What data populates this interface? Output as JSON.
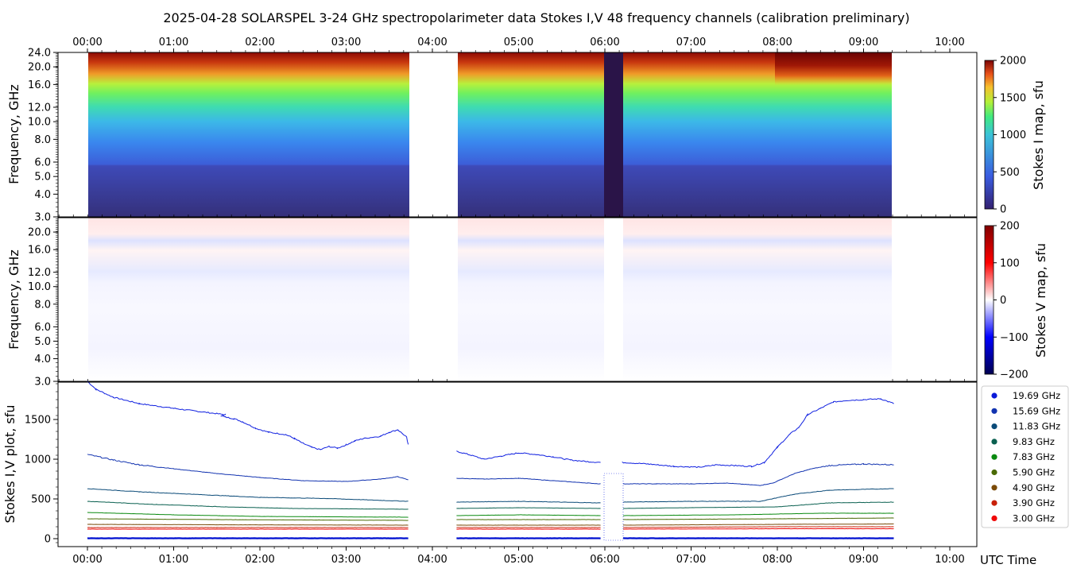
{
  "title": "2025-04-28  SOLARSPEL  3-24 GHz spectropolarimeter data   Stokes I,V   48 frequency channels   (calibration preliminary)",
  "chart_data": [
    {
      "type": "heatmap",
      "name": "stokes-i-map",
      "ylabel": "Frequency, GHz",
      "colorbar_label": "Stokes I map, sfu",
      "colorbar_ticks": [
        "0",
        "500",
        "1000",
        "1500",
        "2000"
      ],
      "clim": [
        0,
        2000
      ],
      "yticks": [
        "3.0",
        "4.0",
        "5.0",
        "6.0",
        "8.0",
        "10.0",
        "12.0",
        "16.0",
        "20.0",
        "24.0"
      ],
      "ylim_ghz": [
        3.0,
        24.0
      ],
      "data_ranges_hours": [
        [
          0.0,
          3.72
        ],
        [
          4.28,
          9.35
        ]
      ],
      "dropout_hours": [
        6.0,
        6.2
      ]
    },
    {
      "type": "heatmap",
      "name": "stokes-v-map",
      "ylabel": "Frequency, GHz",
      "colorbar_label": "Stokes V map, sfu",
      "colorbar_ticks": [
        "200",
        "100",
        "0",
        "−100",
        "−200"
      ],
      "clim": [
        -200,
        200
      ],
      "yticks": [
        "3.0",
        "4.0",
        "5.0",
        "6.0",
        "8.0",
        "10.0",
        "12.0",
        "16.0",
        "20.0"
      ],
      "ylim_ghz": [
        3.0,
        24.0
      ]
    },
    {
      "type": "scatter",
      "name": "stokes-i-v-plot",
      "ylabel": "Stokes I,V plot, sfu",
      "xlabel": "UTC Time",
      "yticks": [
        "0",
        "500",
        "1000",
        "1500"
      ],
      "ylim": [
        -100,
        1970
      ],
      "xlim_hours": [
        -0.33,
        10.33
      ],
      "xticks": [
        "00:00",
        "01:00",
        "02:00",
        "03:00",
        "04:00",
        "05:00",
        "06:00",
        "07:00",
        "08:00",
        "09:00",
        "10:00"
      ],
      "legend": [
        {
          "label": "19.69 GHz",
          "color": "#0a1ad8"
        },
        {
          "label": "15.69 GHz",
          "color": "#1233b0"
        },
        {
          "label": "11.83 GHz",
          "color": "#0a4a78"
        },
        {
          "label": "9.83 GHz",
          "color": "#0a6050"
        },
        {
          "label": "7.83 GHz",
          "color": "#0a8a10"
        },
        {
          "label": "5.90 GHz",
          "color": "#4a6a05"
        },
        {
          "label": "4.90 GHz",
          "color": "#7a4a08"
        },
        {
          "label": "3.90 GHz",
          "color": "#c82008"
        },
        {
          "label": "3.00 GHz",
          "color": "#f00808"
        }
      ],
      "series": [
        {
          "name": "19.69 GHz",
          "color": "#1020e0",
          "points": [
            [
              0.0,
              1980
            ],
            [
              0.1,
              1880
            ],
            [
              0.3,
              1780
            ],
            [
              0.6,
              1700
            ],
            [
              1.0,
              1640
            ],
            [
              1.3,
              1600
            ],
            [
              1.6,
              1560
            ],
            [
              1.55,
              1550
            ],
            [
              1.6,
              1530
            ],
            [
              1.7,
              1510
            ],
            [
              1.8,
              1470
            ],
            [
              1.95,
              1390
            ],
            [
              2.1,
              1340
            ],
            [
              2.3,
              1310
            ],
            [
              2.4,
              1260
            ],
            [
              2.5,
              1200
            ],
            [
              2.6,
              1150
            ],
            [
              2.7,
              1120
            ],
            [
              2.8,
              1160
            ],
            [
              2.9,
              1140
            ],
            [
              3.0,
              1180
            ],
            [
              3.1,
              1230
            ],
            [
              3.2,
              1260
            ],
            [
              3.4,
              1290
            ],
            [
              3.5,
              1340
            ],
            [
              3.6,
              1370
            ],
            [
              3.7,
              1280
            ],
            [
              3.72,
              1180
            ]
          ]
        },
        {
          "name": "19.69 GHz",
          "color": "#1020e0",
          "points": [
            [
              4.28,
              1100
            ],
            [
              4.45,
              1050
            ],
            [
              4.6,
              1000
            ],
            [
              4.8,
              1040
            ],
            [
              5.0,
              1080
            ],
            [
              5.2,
              1060
            ],
            [
              5.4,
              1030
            ],
            [
              5.6,
              990
            ],
            [
              5.8,
              970
            ],
            [
              5.95,
              960
            ]
          ]
        },
        {
          "name": "19.69 GHz",
          "color": "#1020e0",
          "points": [
            [
              6.2,
              960
            ],
            [
              6.5,
              940
            ],
            [
              6.8,
              910
            ],
            [
              7.1,
              900
            ],
            [
              7.3,
              930
            ],
            [
              7.5,
              920
            ],
            [
              7.7,
              910
            ],
            [
              7.85,
              960
            ],
            [
              8.0,
              1150
            ],
            [
              8.15,
              1320
            ],
            [
              8.25,
              1400
            ],
            [
              8.35,
              1560
            ],
            [
              8.5,
              1640
            ],
            [
              8.65,
              1720
            ],
            [
              8.8,
              1740
            ],
            [
              9.0,
              1750
            ],
            [
              9.2,
              1760
            ],
            [
              9.35,
              1700
            ]
          ]
        },
        {
          "name": "15.69 GHz",
          "color": "#1233b0",
          "points": [
            [
              0.0,
              1060
            ],
            [
              0.3,
              990
            ],
            [
              0.6,
              930
            ],
            [
              1.0,
              880
            ],
            [
              1.5,
              820
            ],
            [
              2.0,
              770
            ],
            [
              2.5,
              730
            ],
            [
              3.0,
              720
            ],
            [
              3.4,
              750
            ],
            [
              3.6,
              780
            ],
            [
              3.72,
              740
            ]
          ]
        },
        {
          "name": "15.69 GHz",
          "color": "#1233b0",
          "points": [
            [
              4.28,
              760
            ],
            [
              4.6,
              750
            ],
            [
              5.0,
              760
            ],
            [
              5.4,
              730
            ],
            [
              5.8,
              700
            ],
            [
              5.95,
              690
            ]
          ]
        },
        {
          "name": "15.69 GHz",
          "color": "#1233b0",
          "points": [
            [
              6.2,
              690
            ],
            [
              6.6,
              690
            ],
            [
              7.0,
              690
            ],
            [
              7.4,
              700
            ],
            [
              7.8,
              670
            ],
            [
              7.95,
              700
            ],
            [
              8.2,
              820
            ],
            [
              8.4,
              880
            ],
            [
              8.6,
              920
            ],
            [
              9.0,
              940
            ],
            [
              9.35,
              930
            ]
          ]
        },
        {
          "name": "11.83 GHz",
          "color": "#0a4a78",
          "points": [
            [
              0.0,
              630
            ],
            [
              0.6,
              590
            ],
            [
              1.2,
              560
            ],
            [
              2.0,
              520
            ],
            [
              2.8,
              505
            ],
            [
              3.72,
              470
            ]
          ]
        },
        {
          "name": "11.83 GHz",
          "color": "#0a4a78",
          "points": [
            [
              4.28,
              460
            ],
            [
              5.0,
              470
            ],
            [
              5.95,
              450
            ]
          ]
        },
        {
          "name": "11.83 GHz",
          "color": "#0a4a78",
          "points": [
            [
              6.2,
              460
            ],
            [
              7.0,
              470
            ],
            [
              7.8,
              470
            ],
            [
              8.2,
              560
            ],
            [
              8.6,
              610
            ],
            [
              9.35,
              630
            ]
          ]
        },
        {
          "name": "9.83 GHz",
          "color": "#0a6050",
          "points": [
            [
              0.0,
              470
            ],
            [
              0.8,
              430
            ],
            [
              1.6,
              400
            ],
            [
              2.4,
              380
            ],
            [
              3.72,
              370
            ]
          ]
        },
        {
          "name": "9.83 GHz",
          "color": "#0a6050",
          "points": [
            [
              4.28,
              380
            ],
            [
              5.0,
              390
            ],
            [
              5.95,
              380
            ]
          ]
        },
        {
          "name": "9.83 GHz",
          "color": "#0a6050",
          "points": [
            [
              6.2,
              380
            ],
            [
              7.0,
              390
            ],
            [
              8.0,
              400
            ],
            [
              8.6,
              450
            ],
            [
              9.35,
              460
            ]
          ]
        },
        {
          "name": "7.83 GHz",
          "color": "#0a8a10",
          "points": [
            [
              0.0,
              330
            ],
            [
              1.0,
              300
            ],
            [
              2.0,
              280
            ],
            [
              3.72,
              270
            ]
          ]
        },
        {
          "name": "7.83 GHz",
          "color": "#0a8a10",
          "points": [
            [
              4.28,
              290
            ],
            [
              5.0,
              300
            ],
            [
              5.95,
              290
            ]
          ]
        },
        {
          "name": "7.83 GHz",
          "color": "#0a8a10",
          "points": [
            [
              6.2,
              290
            ],
            [
              7.5,
              300
            ],
            [
              8.5,
              320
            ],
            [
              9.35,
              320
            ]
          ]
        },
        {
          "name": "5.90 GHz",
          "color": "#4a6a05",
          "points": [
            [
              0.0,
              250
            ],
            [
              1.5,
              240
            ],
            [
              3.72,
              230
            ]
          ]
        },
        {
          "name": "5.90 GHz",
          "color": "#4a6a05",
          "points": [
            [
              4.28,
              240
            ],
            [
              5.95,
              240
            ]
          ]
        },
        {
          "name": "5.90 GHz",
          "color": "#4a6a05",
          "points": [
            [
              6.2,
              240
            ],
            [
              8.0,
              250
            ],
            [
              9.35,
              260
            ]
          ]
        },
        {
          "name": "4.90 GHz",
          "color": "#7a4a08",
          "points": [
            [
              0.0,
              180
            ],
            [
              1.5,
              175
            ],
            [
              3.72,
              170
            ]
          ]
        },
        {
          "name": "4.90 GHz",
          "color": "#7a4a08",
          "points": [
            [
              4.28,
              170
            ],
            [
              5.95,
              170
            ]
          ]
        },
        {
          "name": "4.90 GHz",
          "color": "#7a4a08",
          "points": [
            [
              6.2,
              170
            ],
            [
              8.0,
              180
            ],
            [
              9.35,
              185
            ]
          ]
        },
        {
          "name": "3.90 GHz",
          "color": "#c82008",
          "points": [
            [
              0.0,
              140
            ],
            [
              1.5,
              140
            ],
            [
              3.72,
              140
            ]
          ]
        },
        {
          "name": "3.90 GHz",
          "color": "#c82008",
          "points": [
            [
              4.28,
              140
            ],
            [
              5.95,
              140
            ]
          ]
        },
        {
          "name": "3.90 GHz",
          "color": "#c82008",
          "points": [
            [
              6.2,
              140
            ],
            [
              8.0,
              150
            ],
            [
              9.35,
              150
            ]
          ]
        },
        {
          "name": "3.00 GHz",
          "color": "#f00808",
          "points": [
            [
              0.0,
              120
            ],
            [
              1.5,
              120
            ],
            [
              3.72,
              120
            ]
          ]
        },
        {
          "name": "3.00 GHz",
          "color": "#f00808",
          "points": [
            [
              4.28,
              120
            ],
            [
              5.95,
              120
            ]
          ]
        },
        {
          "name": "3.00 GHz",
          "color": "#f00808",
          "points": [
            [
              6.2,
              120
            ],
            [
              8.0,
              125
            ],
            [
              9.35,
              125
            ]
          ]
        },
        {
          "name": "Stokes V",
          "color": "#0010d0",
          "points": [
            [
              0.0,
              5
            ],
            [
              3.72,
              5
            ]
          ]
        },
        {
          "name": "Stokes V",
          "color": "#0010d0",
          "points": [
            [
              4.28,
              5
            ],
            [
              5.95,
              5
            ]
          ]
        },
        {
          "name": "Stokes V",
          "color": "#0010d0",
          "points": [
            [
              6.2,
              5
            ],
            [
              9.35,
              5
            ]
          ]
        }
      ]
    }
  ]
}
